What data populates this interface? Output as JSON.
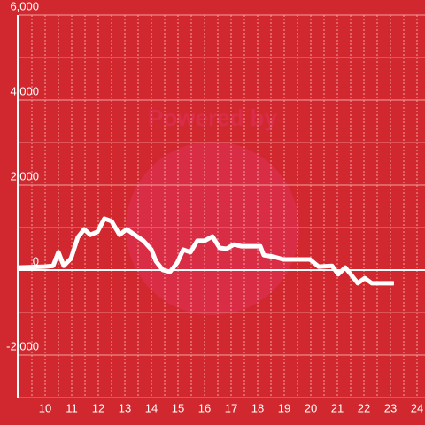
{
  "chart_data": {
    "type": "line",
    "watermark": "Powered by",
    "x": [
      9.0,
      9.97,
      10.3,
      10.5,
      10.7,
      10.97,
      11.23,
      11.47,
      11.7,
      11.97,
      12.23,
      12.5,
      12.8,
      13.07,
      13.37,
      13.7,
      14.0,
      14.17,
      14.43,
      14.7,
      14.97,
      15.2,
      15.47,
      15.73,
      16.0,
      16.3,
      16.57,
      16.83,
      17.1,
      17.4,
      17.67,
      18.1,
      18.23,
      18.63,
      18.97,
      19.97,
      20.3,
      20.8,
      21.03,
      21.3,
      21.77,
      22.03,
      22.3,
      23.13
    ],
    "series": [
      {
        "color": "#ffffff",
        "values": [
          60,
          80,
          100,
          420,
          100,
          270,
          770,
          960,
          830,
          900,
          1210,
          1150,
          830,
          960,
          830,
          690,
          480,
          210,
          0,
          -40,
          170,
          480,
          420,
          690,
          690,
          790,
          520,
          500,
          600,
          560,
          560,
          560,
          350,
          310,
          250,
          250,
          80,
          100,
          -100,
          60,
          -310,
          -190,
          -310,
          -310
        ]
      }
    ],
    "xlim": [
      9,
      24.3
    ],
    "xticks": [
      10,
      11,
      12,
      13,
      14,
      15,
      16,
      17,
      18,
      19,
      20,
      21,
      22,
      23,
      24
    ],
    "ylim": [
      -3000,
      6000
    ],
    "yticks": [
      {
        "value": 6000,
        "label": "6,000"
      },
      {
        "value": 4000,
        "label": "4,000"
      },
      {
        "value": 2000,
        "label": "2,000"
      },
      0,
      {
        "value": -2000,
        "label": "-2,000"
      }
    ],
    "y_minor_ticks": [
      5000,
      3000,
      1000,
      -1000,
      -3000
    ],
    "grid": true,
    "background": "#d0282e"
  }
}
